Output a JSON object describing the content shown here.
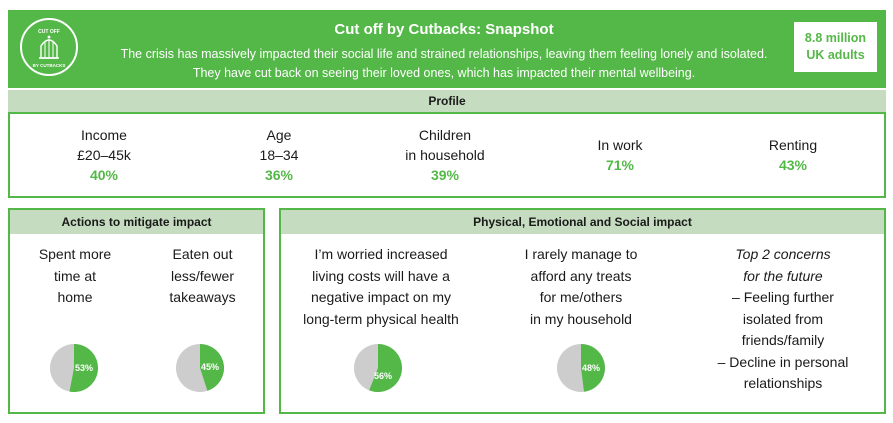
{
  "header": {
    "logo_text_top": "CUT OFF",
    "logo_text_bottom": "BY CUTBACKS",
    "title": "Cut off by Cutbacks: Snapshot",
    "description": "The crisis has massively impacted their social life and strained relationships, leaving them feeling lonely and isolated. They have cut back on seeing their loved ones, which has impacted their mental wellbeing.",
    "badge_line1": "8.8 million",
    "badge_line2": "UK adults"
  },
  "profile": {
    "title": "Profile",
    "items": [
      {
        "line1": "Income",
        "line2": "£20–45k",
        "value": "40%"
      },
      {
        "line1": "Age",
        "line2": "18–34",
        "value": "36%"
      },
      {
        "line1": "Children",
        "line2": "in household",
        "value": "39%"
      },
      {
        "line1": "In work",
        "line2": "",
        "value": "71%"
      },
      {
        "line1": "Renting",
        "line2": "",
        "value": "43%"
      }
    ]
  },
  "actions": {
    "title": "Actions to mitigate impact",
    "items": [
      {
        "lines": [
          "Spent more",
          "time at",
          "home"
        ],
        "percent_label": "53%",
        "percent": 53
      },
      {
        "lines": [
          "Eaten out",
          "less/fewer",
          "takeaways"
        ],
        "percent_label": "45%",
        "percent": 45
      }
    ]
  },
  "impact": {
    "title": "Physical, Emotional and Social impact",
    "items": [
      {
        "lines": [
          "I’m worried increased",
          "living costs will have a",
          "negative impact on my",
          "long-term physical health"
        ],
        "percent_label": "56%",
        "percent": 56
      },
      {
        "lines": [
          "I rarely manage to",
          "afford any treats",
          "for me/others",
          "in my household"
        ],
        "percent_label": "48%",
        "percent": 48
      }
    ],
    "concerns": {
      "heading1": "Top 2 concerns",
      "heading2": "for the future",
      "lines": [
        "– Feeling further",
        "isolated from",
        "friends/family",
        "– Decline in personal",
        "relationships"
      ]
    }
  },
  "colors": {
    "green": "#54b848",
    "grey": "#cdcdcd",
    "light_green_bar": "#c5dcc0"
  }
}
